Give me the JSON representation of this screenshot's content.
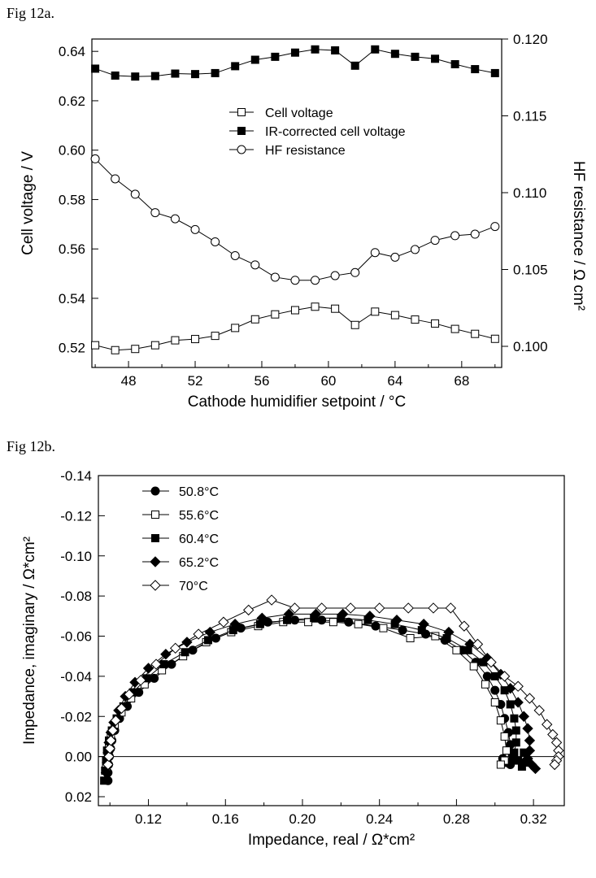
{
  "fig_a_label": "Fig 12a.",
  "fig_b_label": "Fig 12b.",
  "chart_data": [
    {
      "type": "line",
      "xlabel": "Cathode humidifier setpoint / °C",
      "ylabel_left": "Cell voltage / V",
      "ylabel_right": "HF resistance  / Ω cm²",
      "xlim": [
        45.8,
        70.4
      ],
      "ylim_left": [
        0.512,
        0.645
      ],
      "ylim_right": [
        0.1,
        0.12
      ],
      "x_ticks": [
        48,
        52,
        56,
        60,
        64,
        68
      ],
      "y_ticks_left": [
        0.52,
        0.54,
        0.56,
        0.58,
        0.6,
        0.62,
        0.64
      ],
      "y_ticks_right": [
        0.1,
        0.105,
        0.11,
        0.115,
        0.12
      ],
      "legend_position": "center",
      "x": [
        46,
        47.2,
        48.4,
        49.6,
        50.8,
        52,
        53.2,
        54.4,
        55.6,
        56.8,
        58,
        59.2,
        60.4,
        61.6,
        62.8,
        64,
        65.2,
        66.4,
        67.6,
        68.8,
        70
      ],
      "series": [
        {
          "name": "Cell voltage",
          "axis": "left",
          "marker": "open-square",
          "values": [
            0.521,
            0.519,
            0.5195,
            0.521,
            0.523,
            0.5235,
            0.5248,
            0.528,
            0.5315,
            0.5335,
            0.5352,
            0.5366,
            0.5358,
            0.5292,
            0.5346,
            0.5332,
            0.5314,
            0.5298,
            0.5276,
            0.5256,
            0.5236
          ]
        },
        {
          "name": "IR-corrected cell voltage",
          "axis": "left",
          "marker": "filled-square",
          "values": [
            0.633,
            0.6302,
            0.6298,
            0.63,
            0.631,
            0.6308,
            0.6312,
            0.634,
            0.6366,
            0.6378,
            0.6395,
            0.6408,
            0.6404,
            0.6342,
            0.6408,
            0.639,
            0.6378,
            0.637,
            0.6348,
            0.6328,
            0.6312
          ]
        },
        {
          "name": "HF resistance",
          "axis": "right",
          "marker": "open-circle",
          "values": [
            0.1122,
            0.1109,
            0.1099,
            0.1087,
            0.1083,
            0.1076,
            0.1068,
            0.1059,
            0.1053,
            0.1045,
            0.1043,
            0.1043,
            0.1046,
            0.1048,
            0.1061,
            0.1058,
            0.1063,
            0.1069,
            0.1072,
            0.1073,
            0.1078
          ]
        }
      ]
    },
    {
      "type": "scatter",
      "xlabel": "Impedance, real / Ω*cm²",
      "ylabel": "Impedance, imaginary / Ω*cm²",
      "xlim": [
        0.094,
        0.336
      ],
      "ylim": [
        -0.14,
        0.02
      ],
      "y_inverted": true,
      "x_ticks": [
        0.12,
        0.16,
        0.2,
        0.24,
        0.28,
        0.32
      ],
      "y_ticks": [
        -0.14,
        -0.12,
        -0.1,
        -0.08,
        -0.06,
        -0.04,
        -0.02,
        0.0,
        0.02
      ],
      "zero_line": true,
      "legend_position": "top-left",
      "series": [
        {
          "name": "50.8°C",
          "marker": "filled-circle",
          "x": [
            0.099,
            0.099,
            0.0993,
            0.0997,
            0.1003,
            0.101,
            0.1025,
            0.105,
            0.109,
            0.115,
            0.123,
            0.132,
            0.143,
            0.155,
            0.168,
            0.182,
            0.196,
            0.21,
            0.224,
            0.238,
            0.252,
            0.264,
            0.274,
            0.283,
            0.29,
            0.296,
            0.3,
            0.303,
            0.305,
            0.307,
            0.308,
            0.309,
            0.309,
            0.308,
            0.306,
            0.304
          ],
          "y": [
            0.012,
            0.008,
            0.004,
            0.0,
            -0.004,
            -0.008,
            -0.013,
            -0.019,
            -0.025,
            -0.032,
            -0.039,
            -0.046,
            -0.053,
            -0.059,
            -0.064,
            -0.067,
            -0.068,
            -0.068,
            -0.067,
            -0.065,
            -0.063,
            -0.061,
            -0.058,
            -0.053,
            -0.047,
            -0.04,
            -0.033,
            -0.026,
            -0.019,
            -0.012,
            -0.006,
            -0.001,
            0.002,
            0.004,
            0.003,
            0.001
          ]
        },
        {
          "name": "55.6°C",
          "marker": "open-square",
          "x": [
            0.098,
            0.0985,
            0.099,
            0.0995,
            0.1005,
            0.1025,
            0.106,
            0.111,
            0.118,
            0.127,
            0.138,
            0.15,
            0.163,
            0.177,
            0.19,
            0.203,
            0.216,
            0.229,
            0.242,
            0.256,
            0.269,
            0.28,
            0.289,
            0.295,
            0.3,
            0.303,
            0.305,
            0.306,
            0.305,
            0.303
          ],
          "y": [
            0.006,
            0.002,
            -0.002,
            -0.006,
            -0.011,
            -0.016,
            -0.022,
            -0.029,
            -0.036,
            -0.043,
            -0.05,
            -0.057,
            -0.062,
            -0.065,
            -0.067,
            -0.067,
            -0.067,
            -0.066,
            -0.064,
            -0.059,
            -0.06,
            -0.053,
            -0.045,
            -0.036,
            -0.027,
            -0.018,
            -0.01,
            -0.003,
            0.002,
            0.004
          ]
        },
        {
          "name": "60.4°C",
          "marker": "filled-square",
          "x": [
            0.097,
            0.0975,
            0.098,
            0.0985,
            0.0995,
            0.101,
            0.1035,
            0.107,
            0.112,
            0.119,
            0.128,
            0.139,
            0.151,
            0.164,
            0.178,
            0.192,
            0.206,
            0.22,
            0.234,
            0.248,
            0.262,
            0.275,
            0.286,
            0.294,
            0.3,
            0.305,
            0.308,
            0.31,
            0.311,
            0.311,
            0.31,
            0.312,
            0.314,
            0.316,
            0.315
          ],
          "y": [
            0.012,
            0.007,
            0.002,
            -0.003,
            -0.008,
            -0.013,
            -0.019,
            -0.025,
            -0.032,
            -0.039,
            -0.046,
            -0.052,
            -0.058,
            -0.063,
            -0.066,
            -0.068,
            -0.069,
            -0.069,
            -0.068,
            -0.066,
            -0.063,
            -0.059,
            -0.053,
            -0.047,
            -0.04,
            -0.033,
            -0.026,
            -0.019,
            -0.013,
            -0.007,
            -0.002,
            0.002,
            0.005,
            0.003,
            -0.002
          ]
        },
        {
          "name": "65.2°C",
          "marker": "filled-diamond",
          "x": [
            0.098,
            0.0985,
            0.099,
            0.0995,
            0.1005,
            0.102,
            0.1045,
            0.108,
            0.113,
            0.12,
            0.129,
            0.14,
            0.152,
            0.165,
            0.179,
            0.193,
            0.207,
            0.221,
            0.235,
            0.249,
            0.263,
            0.276,
            0.287,
            0.296,
            0.303,
            0.308,
            0.312,
            0.315,
            0.317,
            0.318,
            0.318,
            0.317,
            0.319,
            0.321
          ],
          "y": [
            0.008,
            0.003,
            -0.002,
            -0.007,
            -0.012,
            -0.017,
            -0.023,
            -0.03,
            -0.037,
            -0.044,
            -0.051,
            -0.057,
            -0.062,
            -0.066,
            -0.069,
            -0.071,
            -0.071,
            -0.071,
            -0.07,
            -0.068,
            -0.066,
            -0.062,
            -0.056,
            -0.049,
            -0.041,
            -0.034,
            -0.027,
            -0.02,
            -0.014,
            -0.008,
            -0.003,
            0.001,
            0.004,
            0.006
          ]
        },
        {
          "name": "70°C",
          "marker": "open-diamond",
          "x": [
            0.099,
            0.0995,
            0.1,
            0.1005,
            0.1015,
            0.103,
            0.106,
            0.11,
            0.116,
            0.124,
            0.134,
            0.146,
            0.159,
            0.172,
            0.184,
            0.196,
            0.21,
            0.225,
            0.24,
            0.255,
            0.268,
            0.277,
            0.284,
            0.291,
            0.298,
            0.305,
            0.312,
            0.318,
            0.323,
            0.327,
            0.33,
            0.332,
            0.333,
            0.333,
            0.332,
            0.331
          ],
          "y": [
            0.004,
            0.0,
            -0.004,
            -0.008,
            -0.013,
            -0.018,
            -0.024,
            -0.031,
            -0.038,
            -0.046,
            -0.054,
            -0.061,
            -0.067,
            -0.073,
            -0.078,
            -0.074,
            -0.074,
            -0.074,
            -0.074,
            -0.074,
            -0.074,
            -0.074,
            -0.065,
            -0.056,
            -0.047,
            -0.04,
            -0.035,
            -0.029,
            -0.023,
            -0.016,
            -0.011,
            -0.007,
            -0.003,
            0.0,
            0.002,
            0.004
          ]
        }
      ]
    }
  ]
}
